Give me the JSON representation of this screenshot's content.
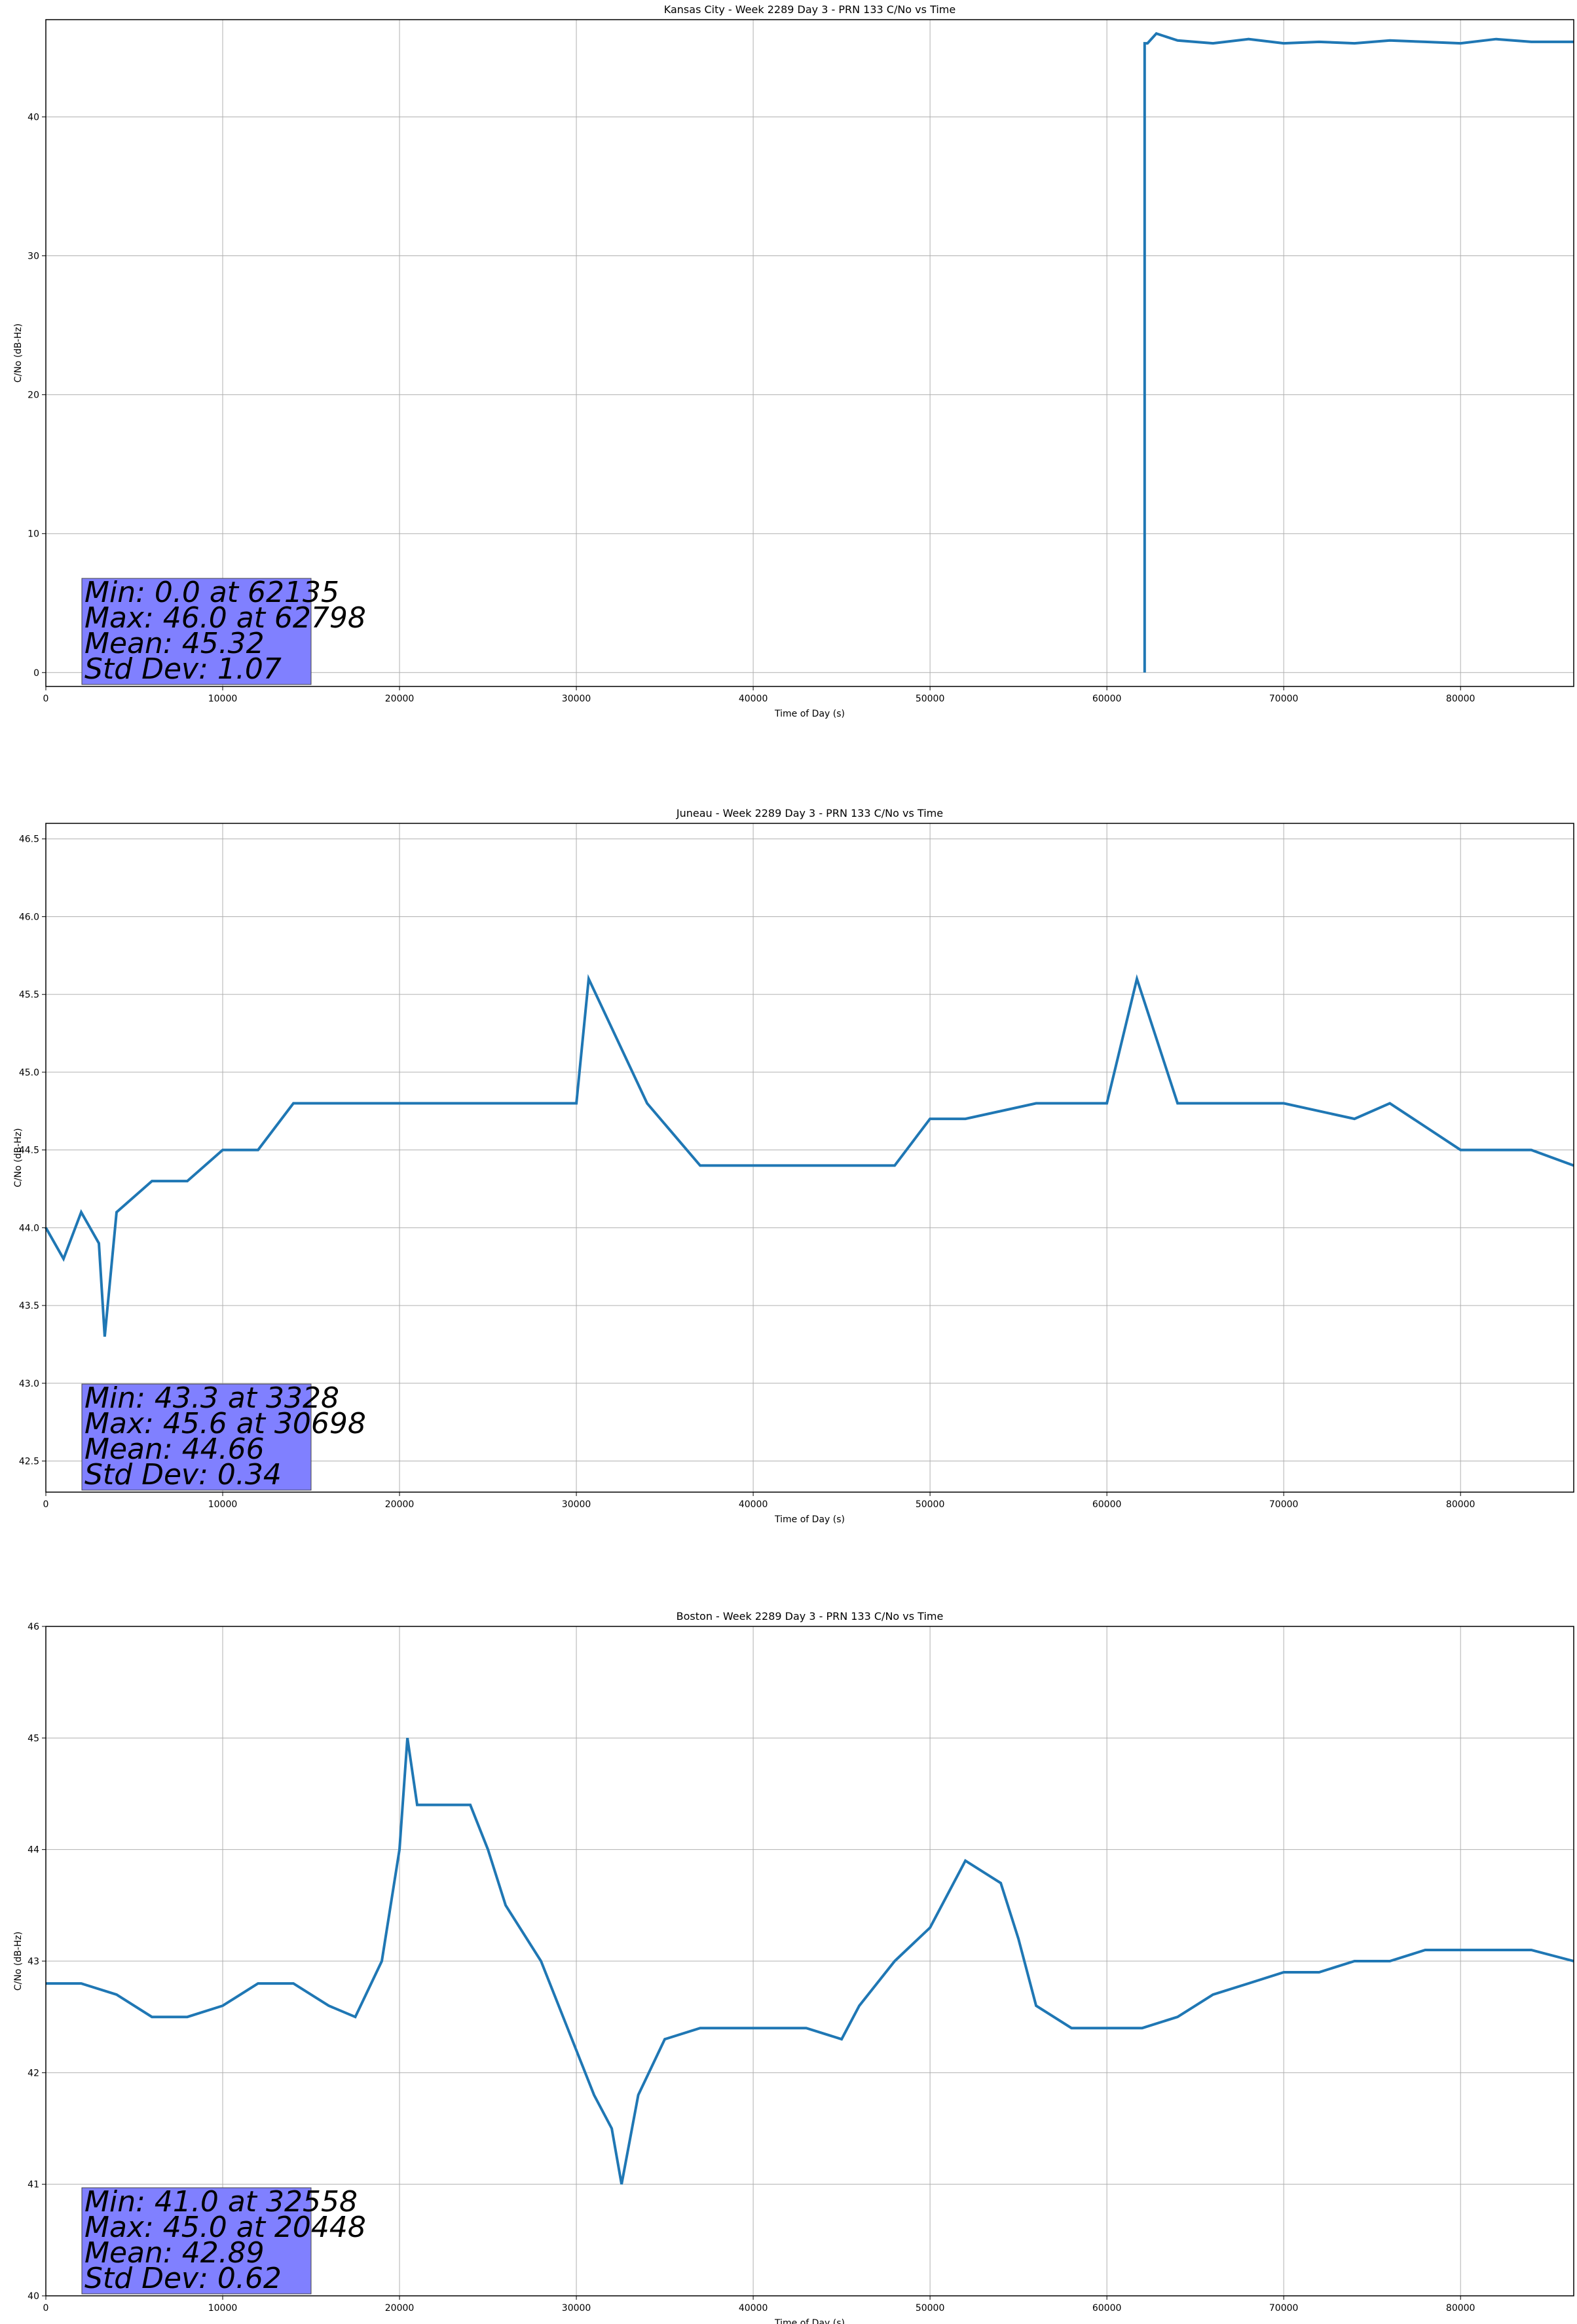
{
  "chart_data": [
    {
      "type": "line",
      "title": "Kansas City - Week 2289 Day 3 - PRN 133 C/No vs Time",
      "xlabel": "Time of Day (s)",
      "ylabel": "C/No (dB-Hz)",
      "xlim": [
        0,
        86400
      ],
      "ylim": [
        -1.0,
        47.0
      ],
      "xticks": [
        0,
        10000,
        20000,
        30000,
        40000,
        50000,
        60000,
        70000,
        80000
      ],
      "yticks": [
        0,
        10,
        20,
        30,
        40
      ],
      "ytick_labels": [
        "0",
        "10",
        "20",
        "30",
        "40"
      ],
      "grid": true,
      "series_color": "#1f77b4",
      "stats": [
        "Min: 0.0 at 62135",
        "Max: 46.0 at 62798",
        "Mean: 45.32",
        "Std Dev: 1.07"
      ],
      "series": [
        {
          "x": [
            62135,
            62135,
            62300,
            62798,
            64000,
            66000,
            68000,
            70000,
            72000,
            74000,
            76000,
            78000,
            80000,
            82000,
            84000,
            86400
          ],
          "y": [
            0.0,
            45.3,
            45.3,
            46.0,
            45.5,
            45.3,
            45.6,
            45.3,
            45.4,
            45.3,
            45.5,
            45.4,
            45.3,
            45.6,
            45.4,
            45.4
          ]
        }
      ]
    },
    {
      "type": "line",
      "title": "Juneau - Week 2289 Day 3 - PRN 133 C/No vs Time",
      "xlabel": "Time of Day (s)",
      "ylabel": "C/No (dB-Hz)",
      "xlim": [
        0,
        86400
      ],
      "ylim": [
        42.3,
        46.6
      ],
      "xticks": [
        0,
        10000,
        20000,
        30000,
        40000,
        50000,
        60000,
        70000,
        80000
      ],
      "yticks": [
        42.5,
        43.0,
        43.5,
        44.0,
        44.5,
        45.0,
        45.5,
        46.0,
        46.5
      ],
      "ytick_labels": [
        "42.5",
        "43.0",
        "43.5",
        "44.0",
        "44.5",
        "45.0",
        "45.5",
        "46.0",
        "46.5"
      ],
      "grid": true,
      "series_color": "#1f77b4",
      "stats": [
        "Min: 43.3 at 3328",
        "Max: 45.6 at 30698",
        "Mean: 44.66",
        "Std Dev: 0.34"
      ],
      "series": [
        {
          "x": [
            0,
            1000,
            2000,
            3000,
            3328,
            4000,
            6000,
            8000,
            9000,
            10000,
            12000,
            14000,
            16000,
            20000,
            25000,
            30000,
            30698,
            34000,
            37000,
            40000,
            43000,
            46000,
            48000,
            50000,
            52000,
            56000,
            60000,
            61700,
            64000,
            67000,
            70000,
            74000,
            76000,
            80000,
            84000,
            86400
          ],
          "y": [
            44.0,
            43.8,
            44.1,
            43.9,
            43.3,
            44.1,
            44.3,
            44.3,
            44.4,
            44.5,
            44.5,
            44.8,
            44.8,
            44.8,
            44.8,
            44.8,
            45.6,
            44.8,
            44.4,
            44.4,
            44.4,
            44.4,
            44.4,
            44.7,
            44.7,
            44.8,
            44.8,
            45.6,
            44.8,
            44.8,
            44.8,
            44.7,
            44.8,
            44.5,
            44.5,
            44.4
          ]
        }
      ]
    },
    {
      "type": "line",
      "title": "Boston - Week 2289 Day 3 - PRN 133 C/No vs Time",
      "xlabel": "Time of Day (s)",
      "ylabel": "C/No (dB-Hz)",
      "xlim": [
        0,
        86400
      ],
      "ylim": [
        40,
        46
      ],
      "xticks": [
        0,
        10000,
        20000,
        30000,
        40000,
        50000,
        60000,
        70000,
        80000
      ],
      "yticks": [
        40,
        41,
        42,
        43,
        44,
        45,
        46
      ],
      "ytick_labels": [
        "40",
        "41",
        "42",
        "43",
        "44",
        "45",
        "46"
      ],
      "grid": true,
      "series_color": "#1f77b4",
      "stats": [
        "Min: 41.0 at 32558",
        "Max: 45.0 at 20448",
        "Mean: 42.89",
        "Std Dev: 0.62"
      ],
      "series": [
        {
          "x": [
            0,
            2000,
            4000,
            6000,
            8000,
            10000,
            12000,
            14000,
            16000,
            17500,
            19000,
            20000,
            20448,
            21000,
            24000,
            25000,
            26000,
            28000,
            29500,
            31000,
            32000,
            32558,
            33500,
            35000,
            37000,
            40000,
            43000,
            45000,
            46000,
            48000,
            50000,
            51000,
            52000,
            54000,
            55000,
            56000,
            58000,
            60000,
            62000,
            64000,
            66000,
            68000,
            70000,
            72000,
            74000,
            76000,
            78000,
            80000,
            82000,
            84000,
            86400
          ],
          "y": [
            42.8,
            42.8,
            42.7,
            42.5,
            42.5,
            42.6,
            42.8,
            42.8,
            42.6,
            42.5,
            43.0,
            44.0,
            45.0,
            44.4,
            44.4,
            44.0,
            43.5,
            43.0,
            42.4,
            41.8,
            41.5,
            41.0,
            41.8,
            42.3,
            42.4,
            42.4,
            42.4,
            42.3,
            42.6,
            43.0,
            43.3,
            43.6,
            43.9,
            43.7,
            43.2,
            42.6,
            42.4,
            42.4,
            42.4,
            42.5,
            42.7,
            42.8,
            42.9,
            42.9,
            43.0,
            43.0,
            43.1,
            43.1,
            43.1,
            43.1,
            43.0
          ]
        }
      ]
    }
  ]
}
